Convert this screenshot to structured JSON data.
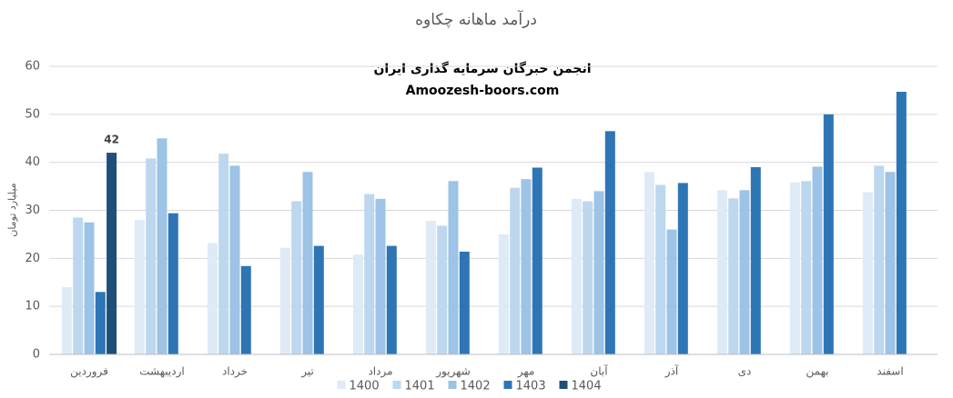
{
  "chart_data": {
    "type": "bar",
    "title": "درآمد ماهانه چکاوه",
    "annotations": [
      "انجمن خبرگان سرمایه گذاری ایران",
      "Amoozesh-boors.com"
    ],
    "y_label": "میلیارد تومان",
    "categories": [
      "فروردین",
      "اردیبهشت",
      "خرداد",
      "تیر",
      "مرداد",
      "شهریور",
      "مهر",
      "آبان",
      "آذر",
      "دی",
      "بهمن",
      "اسفند"
    ],
    "series": [
      {
        "name": "1400",
        "color": "#deebf7",
        "values": [
          14,
          28,
          23.2,
          22.2,
          20.8,
          27.8,
          25,
          32.4,
          38,
          34.2,
          35.8,
          33.8
        ]
      },
      {
        "name": "1401",
        "color": "#bdd7ee",
        "values": [
          28.5,
          40.8,
          41.8,
          31.9,
          33.4,
          26.8,
          34.7,
          31.9,
          35.3,
          32.5,
          36.1,
          39.3
        ]
      },
      {
        "name": "1402",
        "color": "#9dc3e6",
        "values": [
          27.5,
          45,
          39.3,
          38,
          32.4,
          36.1,
          36.5,
          34,
          26,
          34.2,
          39.1,
          38
        ]
      },
      {
        "name": "1403",
        "color": "#2e75b6",
        "values": [
          13,
          29.4,
          18.4,
          22.6,
          22.6,
          21.4,
          38.9,
          46.5,
          35.7,
          39,
          50,
          54.7
        ]
      },
      {
        "name": "1404",
        "color": "#1f4e79",
        "data_labels": true,
        "values": [
          42,
          null,
          null,
          null,
          null,
          null,
          null,
          null,
          null,
          null,
          null,
          null
        ]
      }
    ],
    "ylim": [
      0,
      60
    ],
    "yticks": [
      0,
      10,
      20,
      30,
      40,
      50,
      60
    ],
    "grid": true,
    "legend": "bottom"
  }
}
